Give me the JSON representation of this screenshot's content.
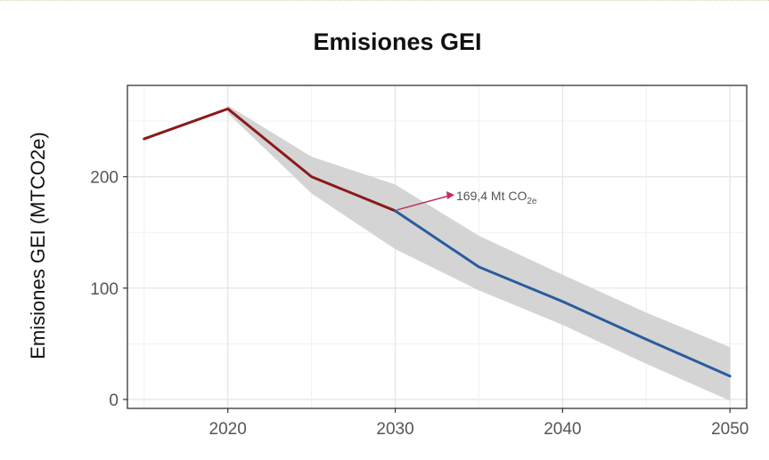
{
  "chart_data": {
    "type": "line",
    "title": "Emisiones GEI",
    "xlabel": "",
    "ylabel": "Emisiones GEI (MTCO2e)",
    "xlim": [
      2014,
      2051
    ],
    "ylim": [
      -8,
      282
    ],
    "x_ticks": [
      2020,
      2030,
      2040,
      2050
    ],
    "y_ticks": [
      0,
      100,
      200
    ],
    "grid": true,
    "series": [
      {
        "color": "#8b1a1a",
        "points": [
          [
            2015,
            234
          ],
          [
            2020,
            261
          ],
          [
            2025,
            200
          ],
          [
            2030,
            169.4
          ]
        ]
      },
      {
        "color": "#2b5c9e",
        "points": [
          [
            2030,
            169.4
          ],
          [
            2035,
            119
          ],
          [
            2040,
            88
          ],
          [
            2045,
            54
          ],
          [
            2050,
            21
          ]
        ]
      }
    ],
    "band": {
      "color": "#cfcfcf",
      "upper": [
        [
          2020,
          264
        ],
        [
          2025,
          218
        ],
        [
          2030,
          193
        ],
        [
          2035,
          147
        ],
        [
          2040,
          112
        ],
        [
          2045,
          78
        ],
        [
          2050,
          47
        ]
      ],
      "lower": [
        [
          2020,
          257
        ],
        [
          2025,
          185
        ],
        [
          2030,
          135
        ],
        [
          2035,
          98
        ],
        [
          2040,
          67
        ],
        [
          2045,
          32
        ],
        [
          2050,
          -1
        ]
      ]
    },
    "annotation": {
      "text_main": "169,4 Mt CO",
      "text_sub": "2e",
      "x": 2030,
      "y": 169.4,
      "arrow_color": "#c0305a"
    }
  }
}
